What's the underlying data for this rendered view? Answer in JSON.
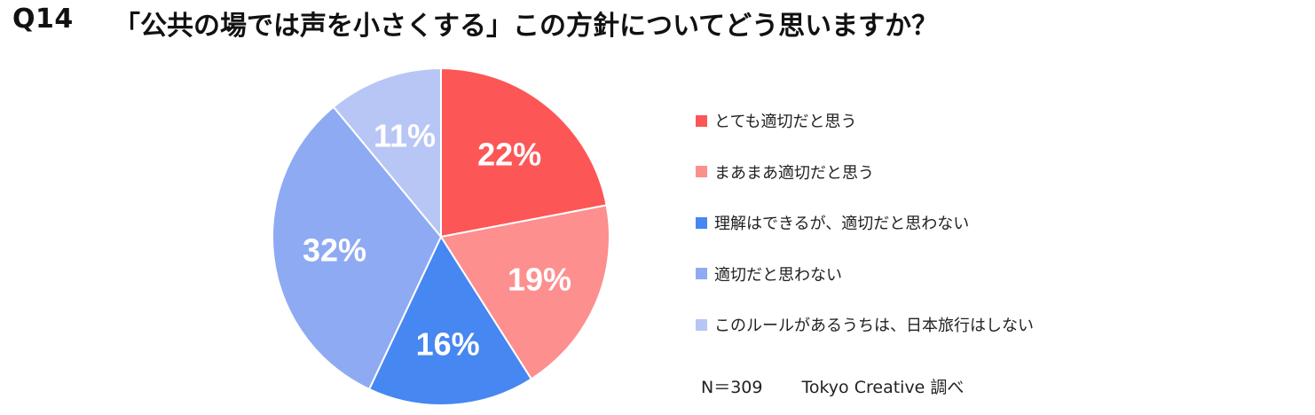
{
  "question": {
    "number": "Q14",
    "text": "「公共の場では声を小さくする」この方針についてどう思いますか？"
  },
  "chart_data": {
    "type": "pie",
    "title": "「公共の場では声を小さくする」この方針についてどう思いますか？",
    "categories": [
      "とても適切だと思う",
      "まあまあ適切だと思う",
      "理解はできるが、適切だと思わない",
      "適切だと思わない",
      "このルールがあるうちは、日本旅行はしない"
    ],
    "values": [
      22,
      19,
      16,
      32,
      11
    ],
    "value_labels": [
      "22%",
      "19%",
      "16%",
      "32%",
      "11%"
    ],
    "colors": [
      "#fd5656",
      "#fd8f8f",
      "#4687f1",
      "#8eaaf3",
      "#b8c6f5"
    ],
    "start_angle": "12 o'clock",
    "direction": "clockwise",
    "legend_position": "right"
  },
  "footer": {
    "sample": "N＝309",
    "credit": "Tokyo Creative  調べ"
  }
}
